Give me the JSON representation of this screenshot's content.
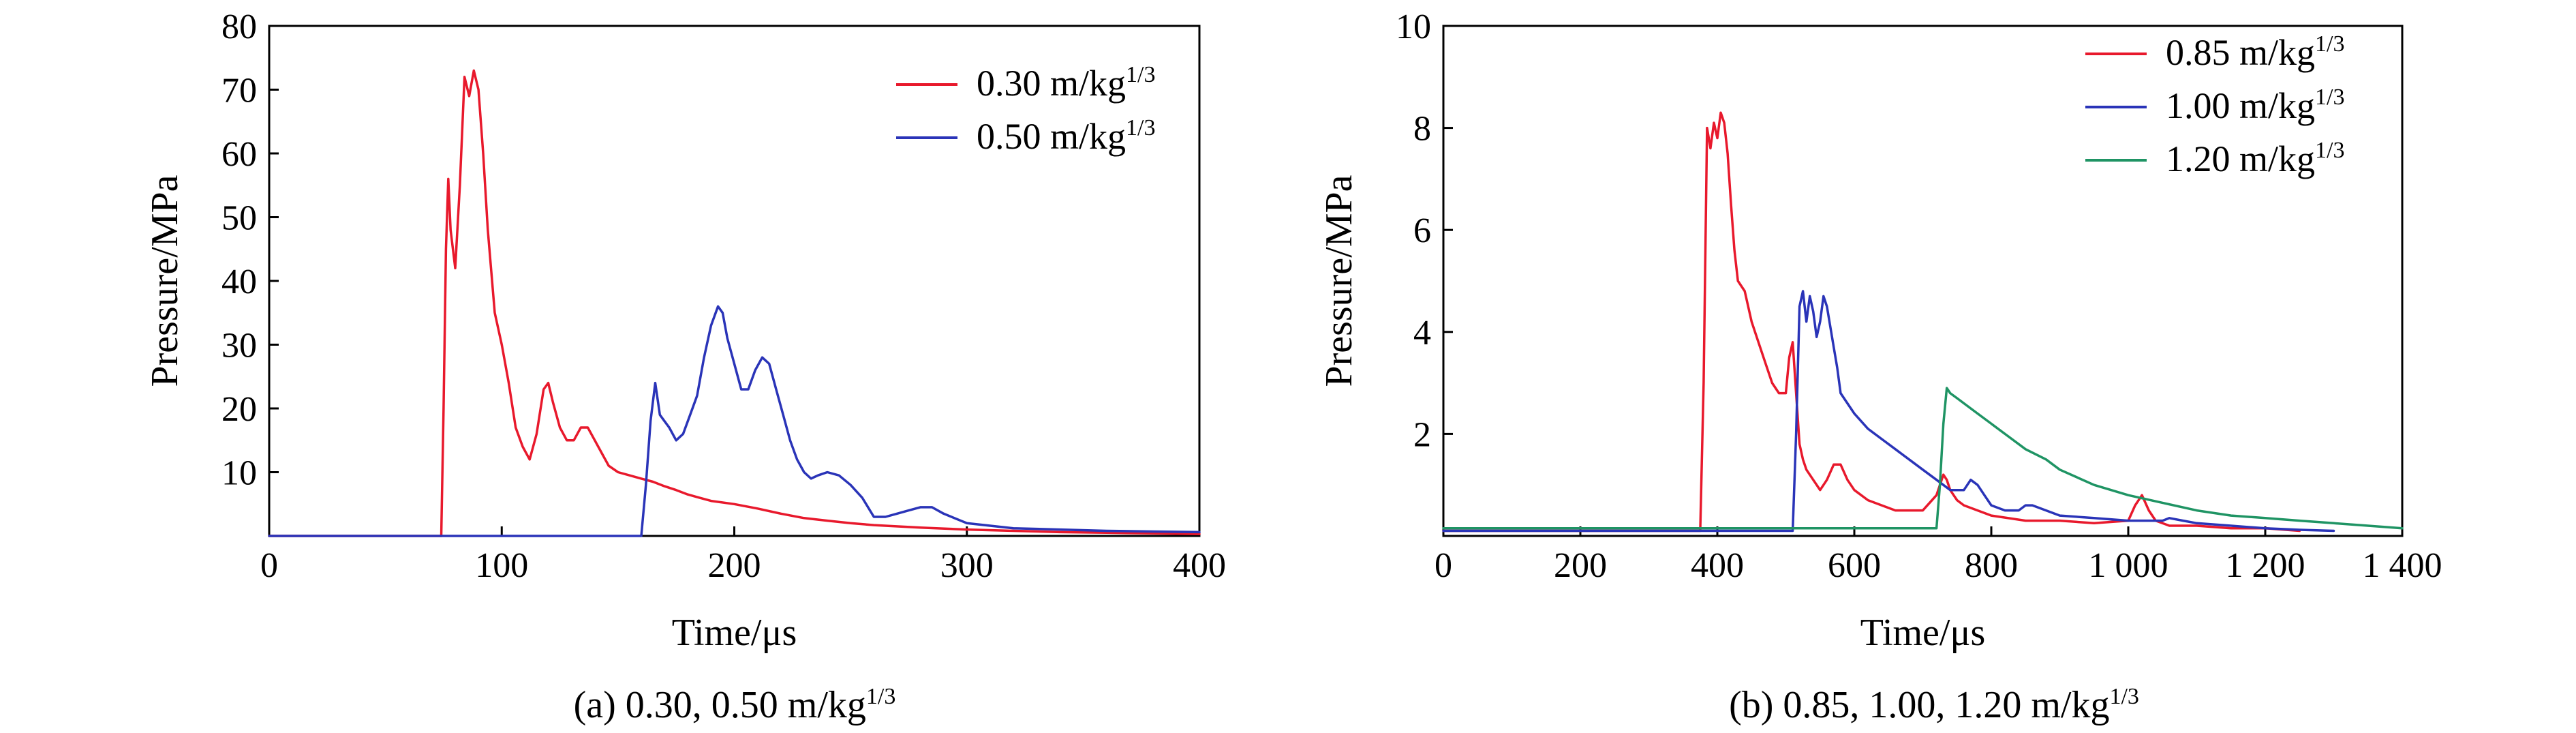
{
  "chart_data": [
    {
      "type": "line",
      "caption": "(a) 0.30, 0.50 m/kg",
      "caption_sup": "1/3",
      "xlabel": "Time/μs",
      "ylabel": "Pressure/MPa",
      "xlim": [
        0,
        400
      ],
      "ylim": [
        0,
        80
      ],
      "xticks": [
        "0",
        "100",
        "200",
        "300",
        "400"
      ],
      "xtick_values": [
        0,
        100,
        200,
        300,
        400
      ],
      "yticks": [
        "10",
        "20",
        "30",
        "40",
        "50",
        "60",
        "70",
        "80"
      ],
      "ytick_values": [
        10,
        20,
        30,
        40,
        50,
        60,
        70,
        80
      ],
      "legend_position": "top-right",
      "grid": false,
      "series": [
        {
          "name": "0.30 m/kg",
          "name_sup": "1/3",
          "color": "#e8192c",
          "x": [
            0,
            74,
            75,
            76,
            77,
            78,
            80,
            82,
            84,
            86,
            88,
            90,
            92,
            94,
            97,
            100,
            103,
            106,
            109,
            112,
            115,
            118,
            120,
            122,
            125,
            128,
            131,
            134,
            137,
            140,
            143,
            146,
            150,
            155,
            160,
            165,
            170,
            175,
            180,
            185,
            190,
            200,
            210,
            220,
            230,
            240,
            250,
            260,
            280,
            300,
            320,
            340,
            360,
            380,
            400
          ],
          "y": [
            0,
            0,
            20,
            45,
            56,
            48,
            42,
            55,
            72,
            69,
            73,
            70,
            60,
            48,
            35,
            30,
            24,
            17,
            14,
            12,
            16,
            23,
            24,
            21,
            17,
            15,
            15,
            17,
            17,
            15,
            13,
            11,
            10,
            9.5,
            9,
            8.5,
            7.8,
            7.2,
            6.5,
            6,
            5.5,
            5,
            4.3,
            3.5,
            2.8,
            2.4,
            2,
            1.7,
            1.3,
            1,
            0.8,
            0.6,
            0.5,
            0.4,
            0.3
          ]
        },
        {
          "name": "0.50 m/kg",
          "name_sup": "1/3",
          "color": "#2a34b8",
          "x": [
            0,
            160,
            162,
            164,
            166,
            168,
            170,
            172,
            175,
            178,
            181,
            184,
            187,
            190,
            193,
            195,
            197,
            200,
            203,
            206,
            209,
            212,
            215,
            218,
            221,
            224,
            227,
            230,
            233,
            236,
            240,
            245,
            250,
            255,
            260,
            265,
            270,
            275,
            280,
            285,
            290,
            300,
            320,
            340,
            360,
            380,
            400
          ],
          "y": [
            0,
            0,
            8,
            18,
            24,
            19,
            18,
            17,
            15,
            16,
            19,
            22,
            28,
            33,
            36,
            35,
            31,
            27,
            23,
            23,
            26,
            28,
            27,
            23,
            19,
            15,
            12,
            10,
            9,
            9.5,
            10,
            9.5,
            8,
            6,
            3,
            3,
            3.5,
            4,
            4.5,
            4.5,
            3.5,
            2,
            1.2,
            1,
            0.8,
            0.7,
            0.6
          ]
        }
      ]
    },
    {
      "type": "line",
      "caption": "(b) 0.85, 1.00, 1.20 m/kg",
      "caption_sup": "1/3",
      "xlabel": "Time/μs",
      "ylabel": "Pressure/MPa",
      "xlim": [
        0,
        1400
      ],
      "ylim": [
        0,
        10
      ],
      "xticks": [
        "0",
        "200",
        "400",
        "600",
        "800",
        "1 000",
        "1 200",
        "1 400"
      ],
      "xtick_values": [
        0,
        200,
        400,
        600,
        800,
        1000,
        1200,
        1400
      ],
      "yticks": [
        "2",
        "4",
        "6",
        "8",
        "10"
      ],
      "ytick_values": [
        2,
        4,
        6,
        8,
        10
      ],
      "legend_position": "top-right",
      "grid": false,
      "series": [
        {
          "name": "0.85 m/kg",
          "name_sup": "1/3",
          "color": "#e8192c",
          "x": [
            0,
            375,
            380,
            385,
            390,
            395,
            400,
            405,
            410,
            415,
            420,
            425,
            430,
            440,
            450,
            460,
            470,
            480,
            490,
            500,
            505,
            510,
            515,
            520,
            525,
            530,
            540,
            550,
            560,
            570,
            580,
            590,
            600,
            620,
            640,
            660,
            680,
            700,
            720,
            730,
            735,
            740,
            750,
            760,
            780,
            800,
            850,
            900,
            950,
            1000,
            1010,
            1020,
            1030,
            1040,
            1060,
            1100,
            1150,
            1200,
            1250
          ],
          "y": [
            0.1,
            0.1,
            3,
            8,
            7.6,
            8.1,
            7.8,
            8.3,
            8.1,
            7.5,
            6.5,
            5.6,
            5,
            4.8,
            4.2,
            3.8,
            3.4,
            3,
            2.8,
            2.8,
            3.5,
            3.8,
            2.8,
            1.8,
            1.5,
            1.3,
            1.1,
            0.9,
            1.1,
            1.4,
            1.4,
            1.1,
            0.9,
            0.7,
            0.6,
            0.5,
            0.5,
            0.5,
            0.8,
            1.2,
            1.1,
            0.9,
            0.7,
            0.6,
            0.5,
            0.4,
            0.3,
            0.3,
            0.25,
            0.3,
            0.6,
            0.8,
            0.5,
            0.3,
            0.2,
            0.2,
            0.15,
            0.15,
            0.1
          ]
        },
        {
          "name": "1.00 m/kg",
          "name_sup": "1/3",
          "color": "#2a34b8",
          "x": [
            0,
            510,
            515,
            520,
            525,
            530,
            535,
            540,
            545,
            550,
            555,
            560,
            565,
            570,
            575,
            580,
            590,
            600,
            620,
            640,
            660,
            680,
            700,
            720,
            740,
            760,
            770,
            780,
            790,
            800,
            820,
            840,
            850,
            860,
            880,
            900,
            950,
            1000,
            1050,
            1060,
            1080,
            1100,
            1150,
            1200,
            1250,
            1300
          ],
          "y": [
            0.1,
            0.1,
            2,
            4.5,
            4.8,
            4.2,
            4.7,
            4.4,
            3.9,
            4.2,
            4.7,
            4.5,
            4.1,
            3.7,
            3.3,
            2.8,
            2.6,
            2.4,
            2.1,
            1.9,
            1.7,
            1.5,
            1.3,
            1.1,
            0.9,
            0.9,
            1.1,
            1,
            0.8,
            0.6,
            0.5,
            0.5,
            0.6,
            0.6,
            0.5,
            0.4,
            0.35,
            0.3,
            0.3,
            0.35,
            0.3,
            0.25,
            0.2,
            0.15,
            0.12,
            0.1
          ]
        },
        {
          "name": "1.20 m/kg",
          "name_sup": "1/3",
          "color": "#1f9464",
          "x": [
            0,
            720,
            725,
            730,
            735,
            740,
            750,
            760,
            780,
            800,
            820,
            850,
            880,
            900,
            950,
            1000,
            1050,
            1100,
            1150,
            1200,
            1250,
            1300,
            1350,
            1400
          ],
          "y": [
            0.15,
            0.15,
            1,
            2.2,
            2.9,
            2.8,
            2.7,
            2.6,
            2.4,
            2.2,
            2,
            1.7,
            1.5,
            1.3,
            1,
            0.8,
            0.65,
            0.5,
            0.4,
            0.35,
            0.3,
            0.25,
            0.2,
            0.15
          ]
        }
      ]
    }
  ]
}
